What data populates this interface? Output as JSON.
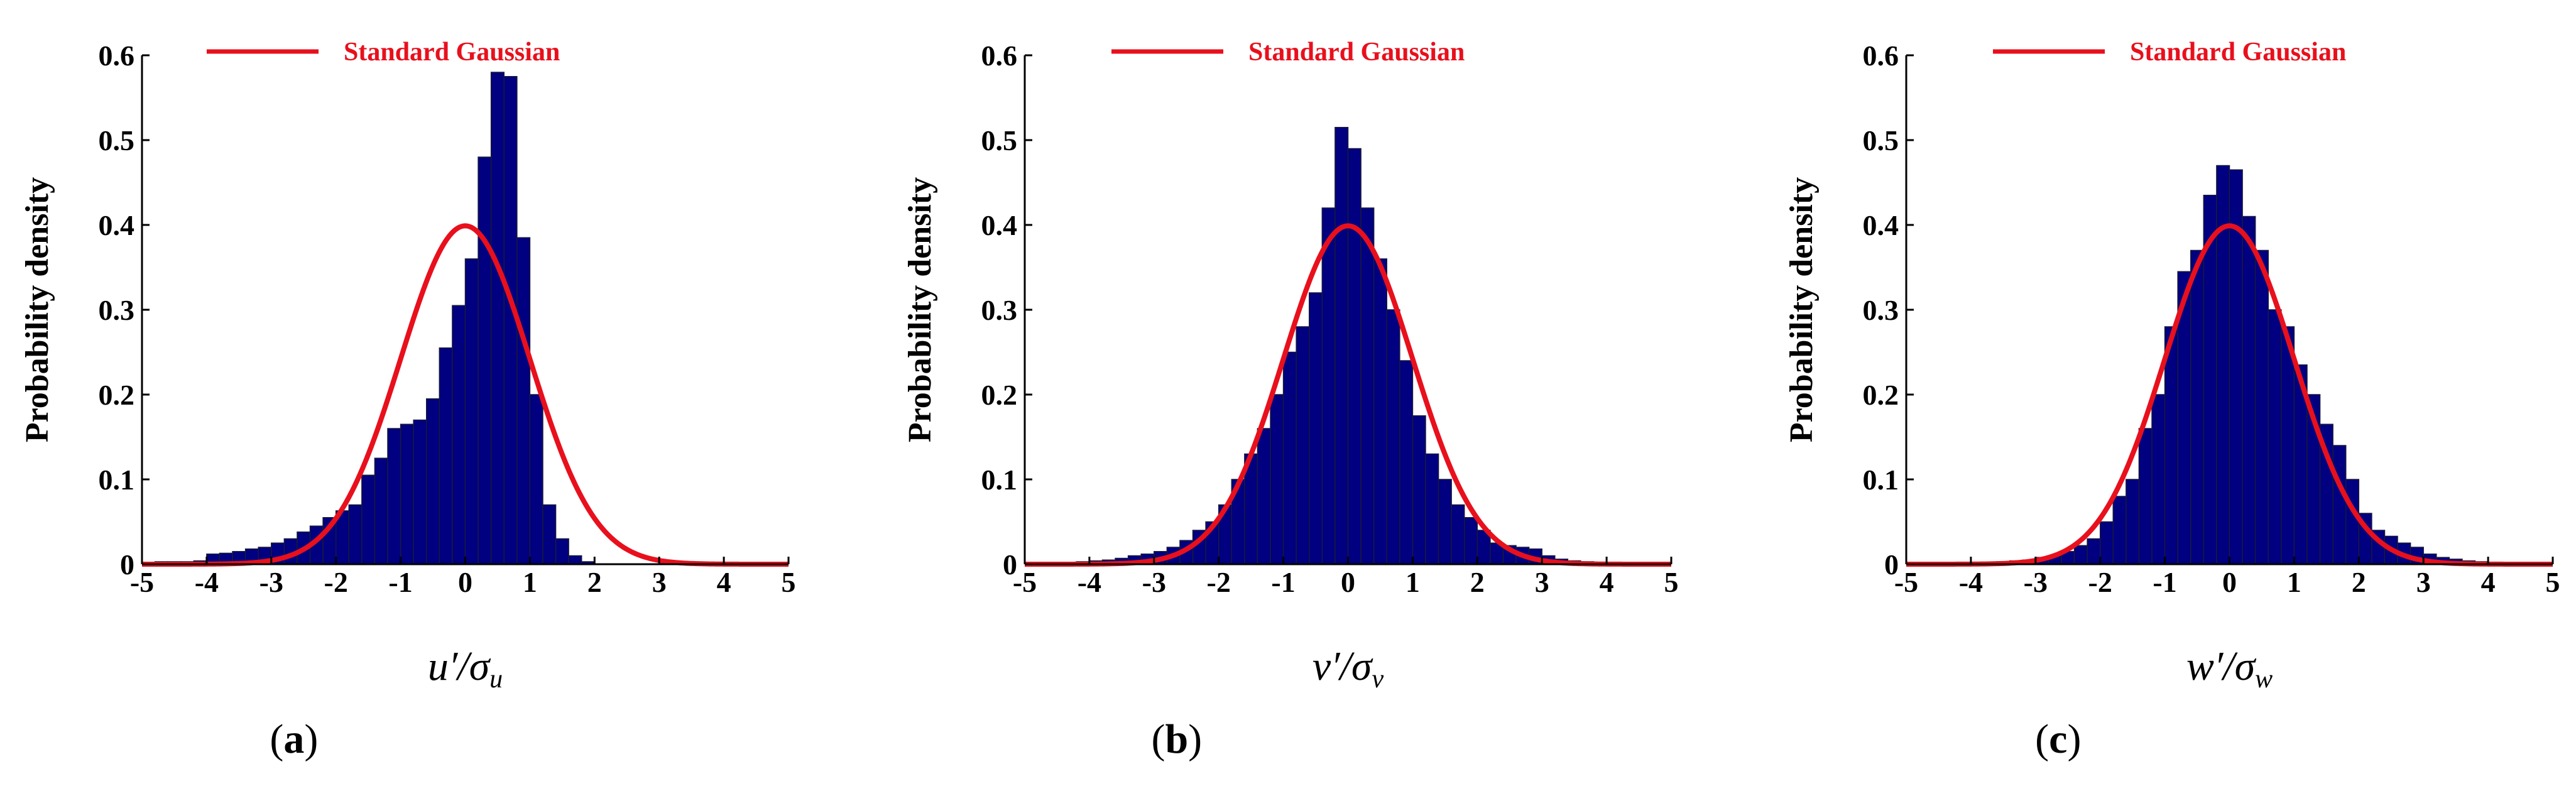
{
  "colors": {
    "bars": "#000080",
    "bar_edge": "#1a1a3a",
    "gaussian": "#e8101c",
    "axis": "#000000"
  },
  "chart_data": [
    {
      "type": "bar",
      "panel_label": "(a)",
      "panel_letter": "a",
      "xlabel_main": "u′/σ",
      "xlabel_sub": "u",
      "ylabel": "Probability density",
      "legend": "Standard Gaussian",
      "legend_position": "top",
      "xlim": [
        -5,
        5
      ],
      "ylim": [
        0,
        0.6
      ],
      "xticks": [
        "-5",
        "-4",
        "-3",
        "-2",
        "-1",
        "0",
        "1",
        "2",
        "3",
        "4",
        "5"
      ],
      "yticks": [
        "0",
        "0.1",
        "0.2",
        "0.3",
        "0.4",
        "0.5",
        "0.6"
      ],
      "bin_width": 0.2,
      "x": [
        -4.7,
        -4.5,
        -4.3,
        -4.1,
        -3.9,
        -3.7,
        -3.5,
        -3.3,
        -3.1,
        -2.9,
        -2.7,
        -2.5,
        -2.3,
        -2.1,
        -1.9,
        -1.7,
        -1.5,
        -1.3,
        -1.1,
        -0.9,
        -0.7,
        -0.5,
        -0.3,
        -0.1,
        0.1,
        0.3,
        0.5,
        0.7,
        0.9,
        1.1,
        1.3,
        1.5,
        1.7,
        1.9
      ],
      "values": [
        0.003,
        0.003,
        0.003,
        0.004,
        0.012,
        0.013,
        0.015,
        0.018,
        0.02,
        0.025,
        0.03,
        0.038,
        0.045,
        0.055,
        0.063,
        0.07,
        0.105,
        0.125,
        0.16,
        0.165,
        0.17,
        0.195,
        0.255,
        0.305,
        0.36,
        0.48,
        0.58,
        0.575,
        0.385,
        0.2,
        0.07,
        0.03,
        0.01,
        0.003
      ],
      "gaussian_series": "Standard Gaussian"
    },
    {
      "type": "bar",
      "panel_label": "(b)",
      "panel_letter": "b",
      "xlabel_main": "v′/σ",
      "xlabel_sub": "v",
      "ylabel": "Probability density",
      "legend": "Standard Gaussian",
      "legend_position": "top",
      "xlim": [
        -5,
        5
      ],
      "ylim": [
        0,
        0.6
      ],
      "xticks": [
        "-5",
        "-4",
        "-3",
        "-2",
        "-1",
        "0",
        "1",
        "2",
        "3",
        "4",
        "5"
      ],
      "yticks": [
        "0",
        "0.1",
        "0.2",
        "0.3",
        "0.4",
        "0.5",
        "0.6"
      ],
      "bin_width": 0.2,
      "x": [
        -4.1,
        -3.9,
        -3.7,
        -3.5,
        -3.3,
        -3.1,
        -2.9,
        -2.7,
        -2.5,
        -2.3,
        -2.1,
        -1.9,
        -1.7,
        -1.5,
        -1.3,
        -1.1,
        -0.9,
        -0.7,
        -0.5,
        -0.3,
        -0.1,
        0.1,
        0.3,
        0.5,
        0.7,
        0.9,
        1.1,
        1.3,
        1.5,
        1.7,
        1.9,
        2.1,
        2.3,
        2.5,
        2.7,
        2.9,
        3.1,
        3.3,
        3.5,
        3.7,
        3.9
      ],
      "values": [
        0.003,
        0.004,
        0.005,
        0.007,
        0.01,
        0.012,
        0.015,
        0.02,
        0.028,
        0.04,
        0.05,
        0.07,
        0.1,
        0.13,
        0.16,
        0.2,
        0.25,
        0.28,
        0.32,
        0.42,
        0.515,
        0.49,
        0.42,
        0.36,
        0.3,
        0.24,
        0.175,
        0.13,
        0.1,
        0.07,
        0.055,
        0.04,
        0.025,
        0.022,
        0.02,
        0.018,
        0.01,
        0.006,
        0.004,
        0.003,
        0.002
      ],
      "gaussian_series": "Standard Gaussian"
    },
    {
      "type": "bar",
      "panel_label": "(c)",
      "panel_letter": "c",
      "xlabel_main": "w′/σ",
      "xlabel_sub": "w",
      "ylabel": "Probability density",
      "legend": "Standard Gaussian",
      "legend_position": "top",
      "xlim": [
        -5,
        5
      ],
      "ylim": [
        0,
        0.6
      ],
      "xticks": [
        "-5",
        "-4",
        "-3",
        "-2",
        "-1",
        "0",
        "1",
        "2",
        "3",
        "4",
        "5"
      ],
      "yticks": [
        "0",
        "0.1",
        "0.2",
        "0.3",
        "0.4",
        "0.5",
        "0.6"
      ],
      "bin_width": 0.2,
      "x": [
        -3.5,
        -3.3,
        -3.1,
        -2.9,
        -2.7,
        -2.5,
        -2.3,
        -2.1,
        -1.9,
        -1.7,
        -1.5,
        -1.3,
        -1.1,
        -0.9,
        -0.7,
        -0.5,
        -0.3,
        -0.1,
        0.1,
        0.3,
        0.5,
        0.7,
        0.9,
        1.1,
        1.3,
        1.5,
        1.7,
        1.9,
        2.1,
        2.3,
        2.5,
        2.7,
        2.9,
        3.1,
        3.3,
        3.5,
        3.7,
        3.9,
        4.1,
        4.3
      ],
      "values": [
        0.003,
        0.004,
        0.005,
        0.008,
        0.01,
        0.015,
        0.022,
        0.03,
        0.05,
        0.08,
        0.1,
        0.16,
        0.2,
        0.28,
        0.345,
        0.37,
        0.435,
        0.47,
        0.465,
        0.41,
        0.37,
        0.3,
        0.28,
        0.235,
        0.2,
        0.165,
        0.14,
        0.1,
        0.06,
        0.04,
        0.033,
        0.025,
        0.02,
        0.012,
        0.008,
        0.006,
        0.004,
        0.003,
        0.002,
        0.002
      ],
      "gaussian_series": "Standard Gaussian"
    }
  ]
}
